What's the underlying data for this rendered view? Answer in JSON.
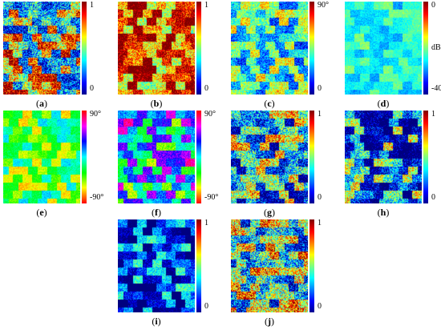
{
  "panels": [
    {
      "id": "a",
      "caption_letter": "a",
      "colormap": "jet",
      "scale_top": "1",
      "scale_bottom": "0",
      "scale_mid": ""
    },
    {
      "id": "b",
      "caption_letter": "b",
      "colormap": "jet",
      "scale_top": "1",
      "scale_bottom": "0",
      "scale_mid": ""
    },
    {
      "id": "c",
      "caption_letter": "c",
      "colormap": "jet",
      "scale_top": "90°",
      "scale_bottom": "0",
      "scale_mid": ""
    },
    {
      "id": "d",
      "caption_letter": "d",
      "colormap": "jet",
      "scale_top": "0",
      "scale_bottom": "-40",
      "scale_mid": "dB"
    },
    {
      "id": "e",
      "caption_letter": "e",
      "colormap": "hsv",
      "scale_top": "90°",
      "scale_bottom": "-90°",
      "scale_mid": ""
    },
    {
      "id": "f",
      "caption_letter": "f",
      "colormap": "hsv",
      "scale_top": "90°",
      "scale_bottom": "-90°",
      "scale_mid": ""
    },
    {
      "id": "g",
      "caption_letter": "g",
      "colormap": "jet",
      "scale_top": "1",
      "scale_bottom": "0",
      "scale_mid": ""
    },
    {
      "id": "h",
      "caption_letter": "h",
      "colormap": "jet",
      "scale_top": "1",
      "scale_bottom": "0",
      "scale_mid": ""
    },
    {
      "id": "i",
      "caption_letter": "i",
      "colormap": "jet",
      "scale_top": "1",
      "scale_bottom": "0",
      "scale_mid": ""
    },
    {
      "id": "j",
      "caption_letter": "j",
      "colormap": "jet",
      "scale_top": "1",
      "scale_bottom": "0",
      "scale_mid": ""
    }
  ],
  "colors": {
    "jet_low": "#00008f",
    "jet_high": "#800000",
    "hsv_mid": "#00ff00",
    "background": "#ffffff"
  }
}
